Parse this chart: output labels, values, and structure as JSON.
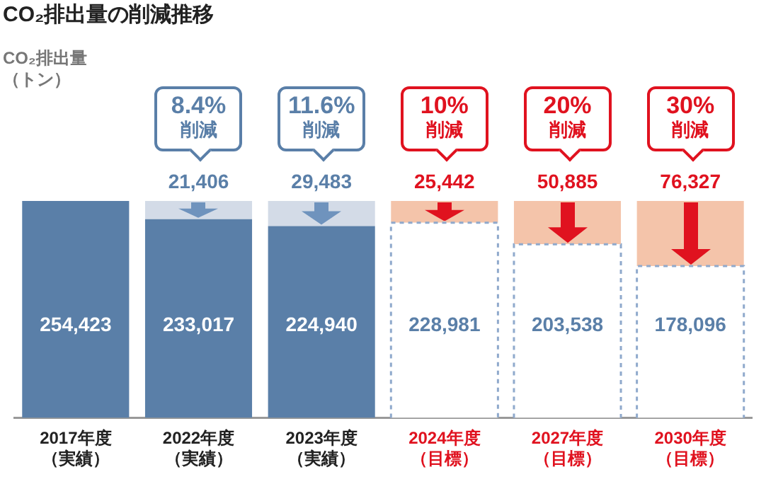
{
  "chart_data": {
    "type": "bar",
    "stacked": true,
    "title": "CO₂排出量の削減推移",
    "categories": [
      "2017年度（実績）",
      "2022年度（実績）",
      "2023年度（実績）",
      "2024年度（目標）",
      "2027年度（目標）",
      "2030年度（目標）"
    ],
    "series": [
      {
        "colors": [
          "#5a7fa8",
          "#5a7fa8",
          "#5a7fa8",
          "#ffffff",
          "#ffffff",
          "#ffffff"
        ],
        "values": [
          254423,
          233017,
          224940,
          228981,
          203538,
          178096
        ],
        "value_labels": [
          "254,423",
          "233,017",
          "224,940",
          "228,981",
          "203,538",
          "178,096"
        ]
      },
      {
        "colors": [
          "#d3dbe7",
          "#d3dbe7",
          "#d3dbe7",
          "#f4c4aa",
          "#f4c4aa",
          "#f4c4aa"
        ],
        "values": [
          null,
          21406,
          29483,
          25442,
          50885,
          76327
        ],
        "value_labels": [
          null,
          "21,406",
          "29,483",
          "25,442",
          "50,885",
          "76,327"
        ]
      }
    ],
    "annotations": [
      "CO₂排出量（トン）",
      {
        "text": "8.4%\n削減",
        "x": "2022年度（実績）",
        "y": 254423
      },
      {
        "text": "11.6%\n削減",
        "x": "2023年度（実績）",
        "y": 254423
      },
      {
        "text": "10%\n削減",
        "x": "2024年度（目標）",
        "y": 254423
      },
      {
        "text": "20%\n削減",
        "x": "2027年度（目標）",
        "y": 254423
      },
      {
        "text": "30%\n削減",
        "x": "2030年度（目標）",
        "y": 254423
      }
    ]
  }
}
